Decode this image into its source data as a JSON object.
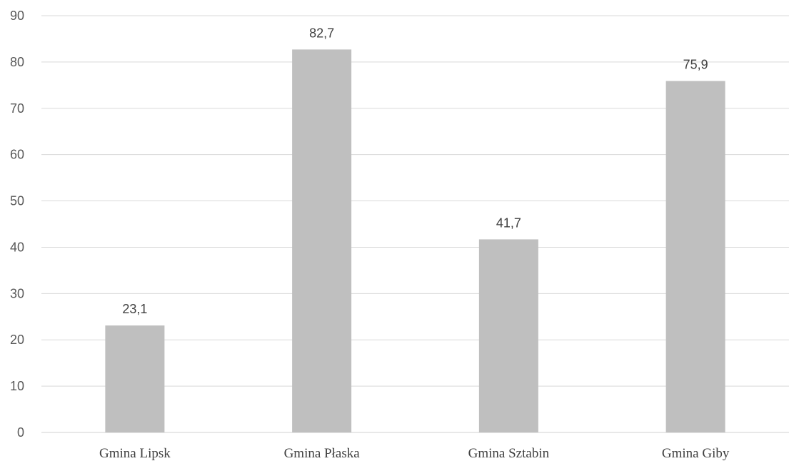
{
  "chart_data": {
    "type": "bar",
    "categories": [
      "Gmina Lipsk",
      "Gmina Płaska",
      "Gmina Sztabin",
      "Gmina Giby"
    ],
    "values": [
      23.1,
      82.7,
      41.7,
      75.9
    ],
    "data_labels": [
      "23,1",
      "82,7",
      "41,7",
      "75,9"
    ],
    "title": "",
    "xlabel": "",
    "ylabel": "",
    "ylim": [
      0,
      90
    ],
    "y_ticks": [
      "0",
      "10",
      "20",
      "30",
      "40",
      "50",
      "60",
      "70",
      "80",
      "90"
    ],
    "grid": true,
    "legend": "none",
    "bar_color": "#bfbfbf"
  }
}
